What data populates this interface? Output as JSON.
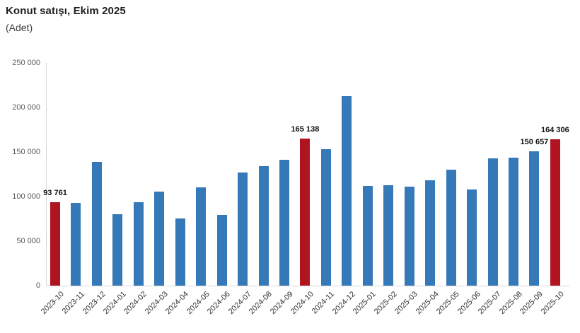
{
  "chart_data": {
    "type": "bar",
    "title": "Konut satışı, Ekim 2025",
    "subtitle": "(Adet)",
    "categories": [
      "2023-10",
      "2023-11",
      "2023-12",
      "2024-01",
      "2024-02",
      "2024-03",
      "2024-04",
      "2024-05",
      "2024-06",
      "2024-07",
      "2024-08",
      "2024-09",
      "2024-10",
      "2024-11",
      "2024-12",
      "2025-01",
      "2025-02",
      "2025-03",
      "2025-04",
      "2025-05",
      "2025-06",
      "2025-07",
      "2025-08",
      "2025-09",
      "2025-10"
    ],
    "values": [
      93761,
      93178,
      138577,
      80308,
      93902,
      105476,
      75569,
      110588,
      79313,
      127088,
      134155,
      140919,
      165138,
      153014,
      212637,
      112173,
      112818,
      110795,
      118359,
      130025,
      107723,
      142858,
      143319,
      150657,
      164306
    ],
    "highlighted_indices": [
      0,
      12,
      24
    ],
    "value_labels": [
      {
        "index": 0,
        "text": "93 761"
      },
      {
        "index": 12,
        "text": "165 138"
      },
      {
        "index": 23,
        "text": "150 657"
      },
      {
        "index": 24,
        "text": "164 306"
      }
    ],
    "y_ticks": [
      {
        "value": 0,
        "label": "0"
      },
      {
        "value": 50000,
        "label": "50 000"
      },
      {
        "value": 100000,
        "label": "100 000"
      },
      {
        "value": 150000,
        "label": "150 000"
      },
      {
        "value": 200000,
        "label": "200 000"
      },
      {
        "value": 250000,
        "label": "250 000"
      }
    ],
    "ylim": [
      0,
      250000
    ],
    "xlabel": "",
    "ylabel": "",
    "grid": false,
    "legend": false,
    "colors": {
      "bar": "#3679b8",
      "highlight": "#b01421",
      "axis_line": "#d9d9d9",
      "y_tick_text": "#595959",
      "x_tick_text": "#333333",
      "value_label_text": "#111111"
    }
  }
}
